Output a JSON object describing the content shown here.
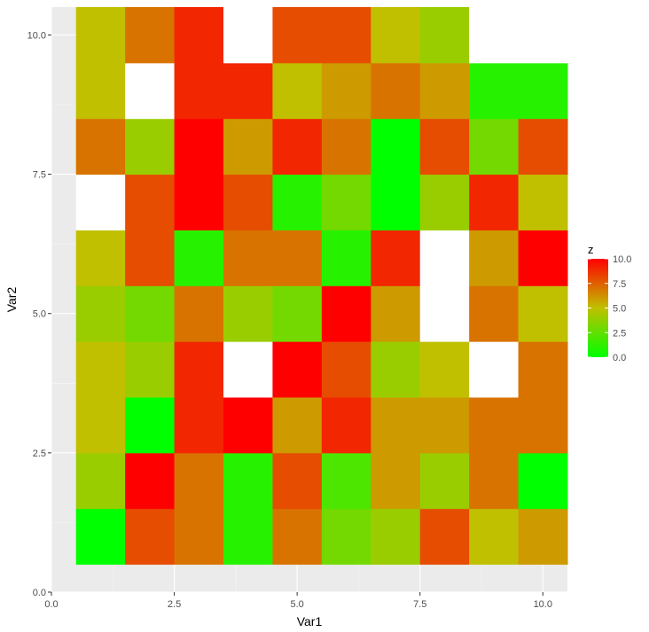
{
  "chart_data": {
    "type": "heatmap",
    "xlabel": "Var1",
    "ylabel": "Var2",
    "x_categories": [
      1,
      2,
      3,
      4,
      5,
      6,
      7,
      8,
      9,
      10
    ],
    "y_categories": [
      1,
      2,
      3,
      4,
      5,
      6,
      7,
      8,
      9,
      10
    ],
    "xlim": [
      0,
      10.5
    ],
    "ylim": [
      0,
      10.5
    ],
    "x_ticks": [
      0,
      2.5,
      5,
      7.5,
      10
    ],
    "x_tick_labels": [
      "0.0",
      "2.5",
      "5.0",
      "7.5",
      "10.0"
    ],
    "y_ticks": [
      0,
      2.5,
      5,
      7.5,
      10
    ],
    "y_tick_labels": [
      "0.0",
      "2.5",
      "5.0",
      "7.5",
      "10.0"
    ],
    "z_rows_note_order": "rows listed from Var2=1 (bottom) to Var2=10 (top); null = missing value",
    "z": [
      [
        0,
        8,
        7,
        1,
        7,
        3,
        4,
        8,
        5,
        6
      ],
      [
        4,
        10,
        7,
        1,
        8,
        2,
        6,
        4,
        7,
        0
      ],
      [
        5,
        0,
        9,
        10,
        6,
        9,
        6,
        6,
        7,
        7
      ],
      [
        5,
        4,
        9,
        null,
        10,
        8,
        4,
        5,
        null,
        7
      ],
      [
        4,
        3,
        7,
        4,
        3,
        10,
        6,
        null,
        7,
        5
      ],
      [
        5,
        8,
        1,
        7,
        7,
        1,
        9,
        null,
        6,
        10
      ],
      [
        null,
        8,
        10,
        8,
        1,
        3,
        0,
        4,
        9,
        5
      ],
      [
        7,
        4,
        10,
        6,
        9,
        7,
        0,
        8,
        3,
        8
      ],
      [
        5,
        null,
        9,
        9,
        5,
        6,
        7,
        6,
        1,
        1
      ],
      [
        5,
        7,
        9,
        null,
        8,
        8,
        5,
        4,
        null,
        null
      ]
    ],
    "legend": {
      "title": "z",
      "range": [
        0,
        10
      ],
      "ticks": [
        0,
        2.5,
        5,
        7.5,
        10
      ],
      "tick_labels": [
        "0.0",
        "2.5",
        "5.0",
        "7.5",
        "10.0"
      ],
      "colors": [
        "#00ff00",
        "#c0c000",
        "#ff0000"
      ],
      "placement": "right"
    },
    "na_color": "#ffffff",
    "panel_background": "#ebebeb",
    "grid": true
  }
}
